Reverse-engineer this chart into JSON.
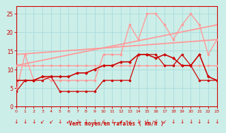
{
  "bg_color": "#cceee8",
  "grid_color": "#aadddd",
  "xlabel": "Vent moyen/en rafales ( km/h )",
  "xlabel_color": "#cc0000",
  "tick_color": "#cc0000",
  "ylim": [
    0,
    27
  ],
  "xlim": [
    0,
    23
  ],
  "yticks": [
    0,
    5,
    10,
    15,
    20,
    25
  ],
  "xticks": [
    0,
    1,
    2,
    3,
    4,
    5,
    6,
    7,
    8,
    9,
    10,
    11,
    12,
    13,
    14,
    15,
    16,
    17,
    18,
    19,
    20,
    21,
    22,
    23
  ],
  "lines": [
    {
      "comment": "dark red jagged line with small markers - lower series",
      "x": [
        0,
        1,
        2,
        3,
        4,
        5,
        6,
        7,
        8,
        9,
        10,
        11,
        12,
        13,
        14,
        15,
        16,
        17,
        18,
        19,
        20,
        21,
        22,
        23
      ],
      "y": [
        4,
        7,
        7,
        7,
        8,
        4,
        4,
        4,
        4,
        4,
        7,
        7,
        7,
        7,
        14,
        14,
        14,
        11,
        11,
        14,
        11,
        7,
        7,
        7
      ],
      "color": "#cc0000",
      "lw": 0.9,
      "marker": "o",
      "ms": 2.0,
      "zorder": 5
    },
    {
      "comment": "dark red main line with cross markers - upper series",
      "x": [
        0,
        1,
        2,
        3,
        4,
        5,
        6,
        7,
        8,
        9,
        10,
        11,
        12,
        13,
        14,
        15,
        16,
        17,
        18,
        19,
        20,
        21,
        22,
        23
      ],
      "y": [
        7,
        7,
        7,
        8,
        8,
        8,
        8,
        9,
        9,
        10,
        11,
        11,
        12,
        12,
        14,
        14,
        13,
        14,
        13,
        11,
        11,
        14,
        8,
        7
      ],
      "color": "#cc0000",
      "lw": 1.2,
      "marker": "D",
      "ms": 2.0,
      "zorder": 6
    },
    {
      "comment": "light pink flat line at ~11",
      "x": [
        0,
        1,
        2,
        3,
        4,
        5,
        6,
        7,
        8,
        9,
        10,
        11,
        12,
        13,
        14,
        15,
        16,
        17,
        18,
        19,
        20,
        21,
        22,
        23
      ],
      "y": [
        11,
        11,
        11,
        11,
        11,
        11,
        11,
        11,
        11,
        11,
        11,
        11,
        11,
        11,
        11,
        11,
        11,
        11,
        11,
        11,
        11,
        11,
        11,
        11
      ],
      "color": "#ff9999",
      "lw": 1.0,
      "marker": "o",
      "ms": 1.8,
      "zorder": 3
    },
    {
      "comment": "light pink jagged rafales line",
      "x": [
        0,
        1,
        2,
        3,
        4,
        5,
        6,
        7,
        8,
        9,
        10,
        11,
        12,
        13,
        14,
        15,
        16,
        17,
        18,
        19,
        20,
        21,
        22,
        23
      ],
      "y": [
        4,
        14,
        7,
        8,
        7,
        7,
        7,
        7,
        7,
        7,
        14,
        14,
        14,
        22,
        18,
        25,
        25,
        22,
        18,
        22,
        25,
        22,
        14,
        18
      ],
      "color": "#ff9999",
      "lw": 1.0,
      "marker": "o",
      "ms": 2.0,
      "zorder": 4
    },
    {
      "comment": "light pink trend line upper",
      "x": [
        0,
        23
      ],
      "y": [
        11,
        22
      ],
      "color": "#ff9999",
      "lw": 1.3,
      "marker": null,
      "ms": 0,
      "zorder": 2
    },
    {
      "comment": "light pink trend line lower",
      "x": [
        0,
        23
      ],
      "y": [
        14,
        18
      ],
      "color": "#ff9999",
      "lw": 1.3,
      "marker": null,
      "ms": 0,
      "zorder": 2
    }
  ],
  "wind_arrows": [
    "k",
    "k",
    "k",
    "sw",
    "sw",
    "k",
    "sw",
    "k",
    "k",
    "k",
    "k",
    "k",
    "sw",
    "sw",
    "k",
    "k",
    "k",
    "sw",
    "k",
    "k",
    "k",
    "k",
    "k",
    "k"
  ],
  "arrow_color": "#cc0000"
}
